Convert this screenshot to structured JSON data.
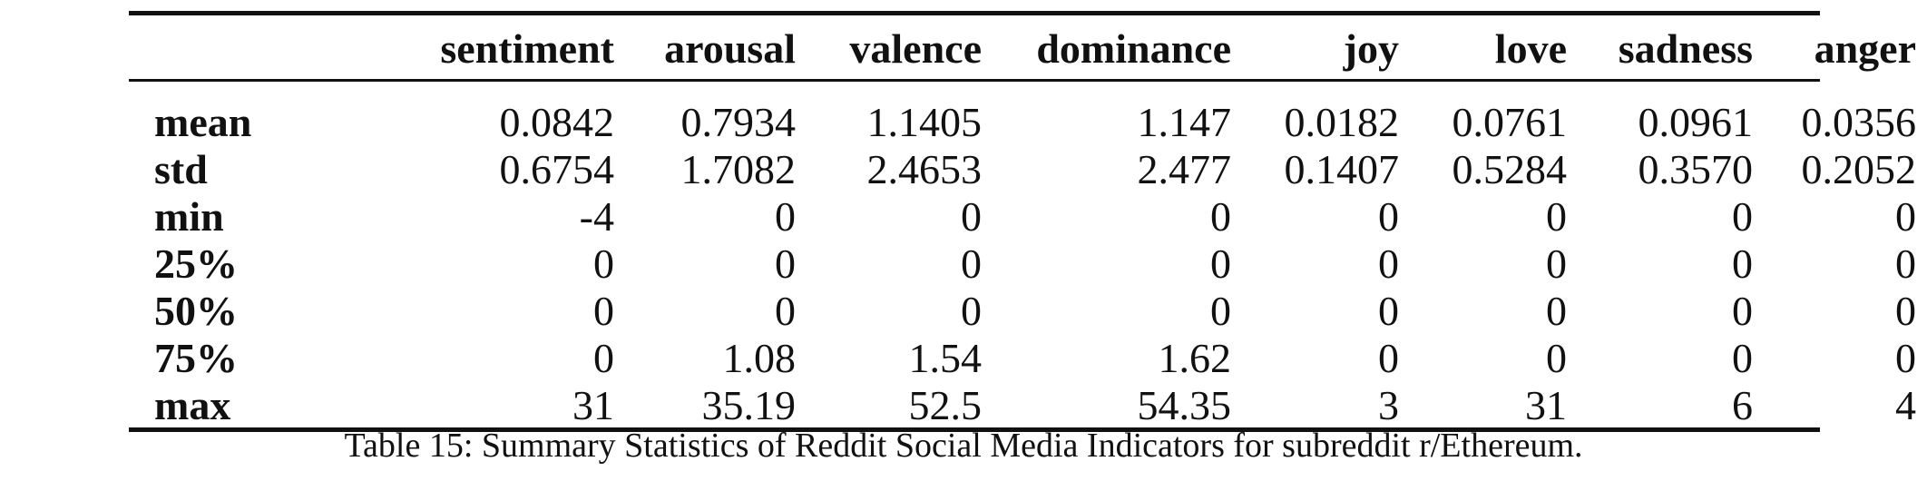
{
  "table": {
    "columns": [
      "sentiment",
      "arousal",
      "valence",
      "dominance",
      "joy",
      "love",
      "sadness",
      "anger"
    ],
    "rows": [
      {
        "label": "mean",
        "values": [
          "0.0842",
          "0.7934",
          "1.1405",
          "1.147",
          "0.0182",
          "0.0761",
          "0.0961",
          "0.0356"
        ]
      },
      {
        "label": "std",
        "values": [
          "0.6754",
          "1.7082",
          "2.4653",
          "2.477",
          "0.1407",
          "0.5284",
          "0.3570",
          "0.2052"
        ]
      },
      {
        "label": "min",
        "values": [
          "-4",
          "0",
          "0",
          "0",
          "0",
          "0",
          "0",
          "0"
        ]
      },
      {
        "label": "25%",
        "values": [
          "0",
          "0",
          "0",
          "0",
          "0",
          "0",
          "0",
          "0"
        ]
      },
      {
        "label": "50%",
        "values": [
          "0",
          "0",
          "0",
          "0",
          "0",
          "0",
          "0",
          "0"
        ]
      },
      {
        "label": "75%",
        "values": [
          "0",
          "1.08",
          "1.54",
          "1.62",
          "0",
          "0",
          "0",
          "0"
        ]
      },
      {
        "label": "max",
        "values": [
          "31",
          "35.19",
          "52.5",
          "54.35",
          "3",
          "31",
          "6",
          "4"
        ]
      }
    ]
  },
  "caption": "Table 15: Summary Statistics of Reddit Social Media Indicators for subreddit r/Ethereum."
}
